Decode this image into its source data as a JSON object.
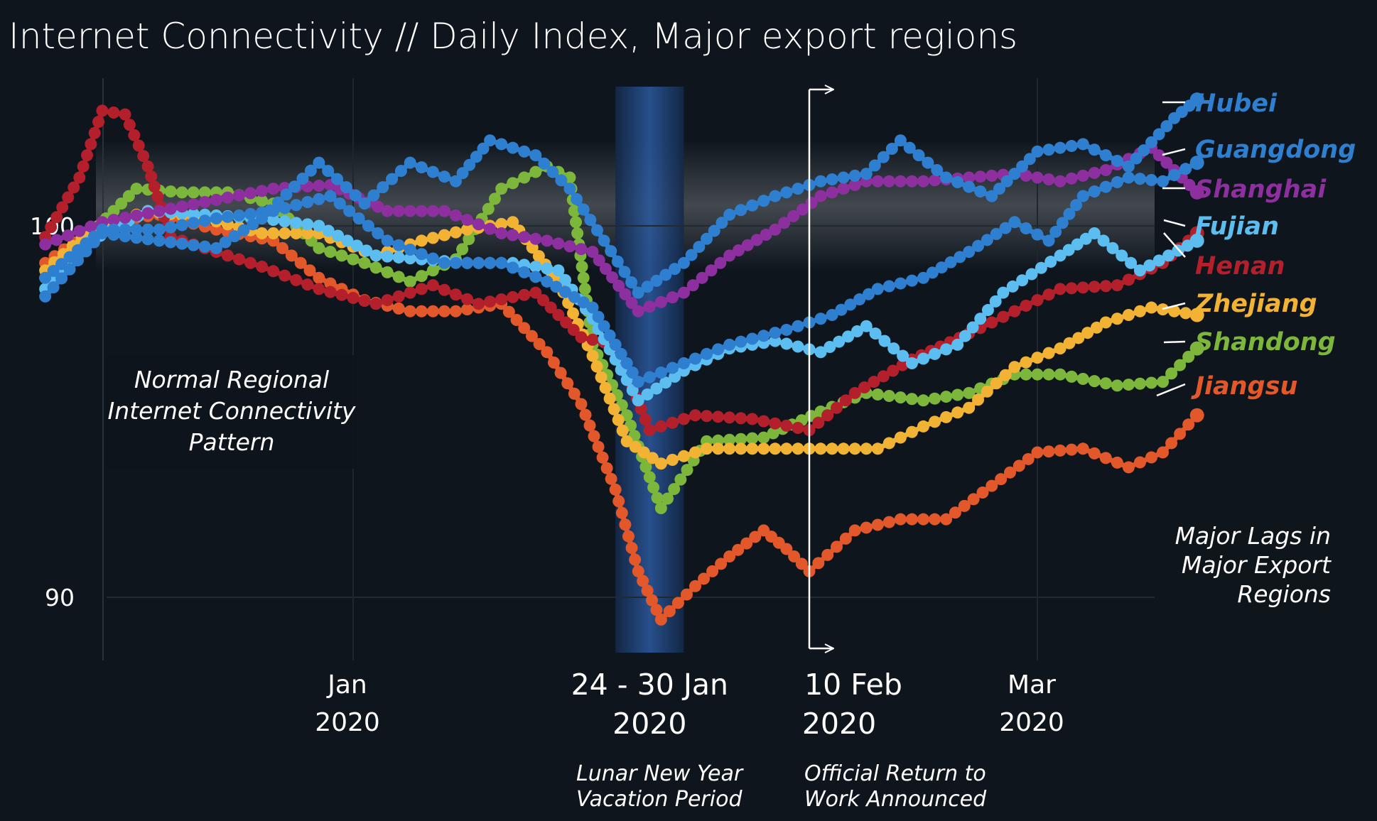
{
  "title": "Internet Connectivity // Daily Index, Major export regions",
  "annotations": {
    "normal_pattern": [
      "Normal Regional",
      "Internet Connectivity",
      "Pattern"
    ],
    "major_lags": [
      "Major Lags in",
      "Major Export",
      "Regions"
    ],
    "lunar_note": [
      "Lunar New Year",
      "Vacation Period"
    ],
    "return_note": [
      "Official Return to",
      "Work Announced"
    ]
  },
  "colors": {
    "background": "#0e151c",
    "Hubei": "#2f7fd1",
    "Guangdong": "#2f7fd1",
    "Shanghai": "#8e2fa0",
    "Fujian": "#5bbdf0",
    "Henan": "#b3202c",
    "Zhejiang": "#f2b233",
    "Shandong": "#7cb63a",
    "Jiangsu": "#e2582a"
  },
  "chart_data": {
    "type": "line",
    "title": "Internet Connectivity // Daily Index, Major export regions",
    "xlabel": "",
    "ylabel": "",
    "x_range": [
      "2019-12-04",
      "2020-03-15"
    ],
    "ylim": [
      88.5,
      103.5
    ],
    "y_ticks": [
      90,
      100
    ],
    "x_ticks": [
      {
        "date": "2020-01-01",
        "line1": "Jan",
        "line2": "2020",
        "big": false
      },
      {
        "date": "2020-01-27",
        "line1": "24 - 30 Jan",
        "line2": "2020",
        "big": true
      },
      {
        "date": "2020-02-10",
        "line1": "10 Feb",
        "line2": "2020",
        "big": true
      },
      {
        "date": "2020-03-01",
        "line1": "Mar",
        "line2": "2020",
        "big": false
      }
    ],
    "shaded_periods": [
      {
        "start": "2020-01-24",
        "end": "2020-01-30",
        "label": "Lunar New Year Vacation Period"
      }
    ],
    "normal_band": [
      98.8,
      102.3
    ],
    "marker_date": "2020-02-10",
    "grid": false,
    "legend_position": "right",
    "series": [
      {
        "name": "Hubei",
        "points": [
          [
            "2019-12-05",
            98.1
          ],
          [
            "2019-12-10",
            99.8
          ],
          [
            "2019-12-15",
            99.6
          ],
          [
            "2019-12-20",
            99.4
          ],
          [
            "2019-12-24",
            100.2
          ],
          [
            "2019-12-29",
            101.7
          ],
          [
            "2020-01-02",
            100.6
          ],
          [
            "2020-01-06",
            101.7
          ],
          [
            "2020-01-10",
            101.2
          ],
          [
            "2020-01-13",
            102.3
          ],
          [
            "2020-01-17",
            101.9
          ],
          [
            "2020-01-20",
            101.0
          ],
          [
            "2020-01-23",
            99.6
          ],
          [
            "2020-01-26",
            98.2
          ],
          [
            "2020-01-30",
            99.0
          ],
          [
            "2020-02-03",
            100.3
          ],
          [
            "2020-02-07",
            100.8
          ],
          [
            "2020-02-11",
            101.2
          ],
          [
            "2020-02-15",
            101.4
          ],
          [
            "2020-02-18",
            102.3
          ],
          [
            "2020-02-22",
            101.3
          ],
          [
            "2020-02-26",
            100.8
          ],
          [
            "2020-03-01",
            102.0
          ],
          [
            "2020-03-05",
            102.2
          ],
          [
            "2020-03-09",
            101.6
          ],
          [
            "2020-03-13",
            102.9
          ],
          [
            "2020-03-15",
            103.4
          ]
        ]
      },
      {
        "name": "Guangdong",
        "points": [
          [
            "2019-12-05",
            98.6
          ],
          [
            "2019-12-10",
            99.9
          ],
          [
            "2019-12-15",
            99.9
          ],
          [
            "2019-12-20",
            100.2
          ],
          [
            "2019-12-25",
            100.4
          ],
          [
            "2019-12-30",
            100.8
          ],
          [
            "2020-01-04",
            99.6
          ],
          [
            "2020-01-09",
            99.0
          ],
          [
            "2020-01-14",
            99.0
          ],
          [
            "2020-01-18",
            98.5
          ],
          [
            "2020-01-22",
            97.8
          ],
          [
            "2020-01-26",
            95.8
          ],
          [
            "2020-01-30",
            96.3
          ],
          [
            "2020-02-03",
            96.8
          ],
          [
            "2020-02-08",
            97.2
          ],
          [
            "2020-02-12",
            97.6
          ],
          [
            "2020-02-16",
            98.3
          ],
          [
            "2020-02-20",
            98.6
          ],
          [
            "2020-02-24",
            99.3
          ],
          [
            "2020-02-28",
            100.1
          ],
          [
            "2020-03-02",
            99.6
          ],
          [
            "2020-03-05",
            100.8
          ],
          [
            "2020-03-09",
            101.3
          ],
          [
            "2020-03-12",
            101.2
          ],
          [
            "2020-03-15",
            101.7
          ]
        ]
      },
      {
        "name": "Shanghai",
        "points": [
          [
            "2019-12-05",
            99.5
          ],
          [
            "2019-12-10",
            100.1
          ],
          [
            "2019-12-15",
            100.4
          ],
          [
            "2019-12-20",
            100.7
          ],
          [
            "2019-12-25",
            101.0
          ],
          [
            "2019-12-30",
            101.1
          ],
          [
            "2020-01-04",
            100.4
          ],
          [
            "2020-01-09",
            100.4
          ],
          [
            "2020-01-14",
            99.8
          ],
          [
            "2020-01-18",
            99.6
          ],
          [
            "2020-01-22",
            99.3
          ],
          [
            "2020-01-26",
            97.7
          ],
          [
            "2020-01-30",
            98.2
          ],
          [
            "2020-02-03",
            99.2
          ],
          [
            "2020-02-07",
            99.9
          ],
          [
            "2020-02-11",
            100.8
          ],
          [
            "2020-02-15",
            101.2
          ],
          [
            "2020-02-20",
            101.2
          ],
          [
            "2020-02-24",
            101.3
          ],
          [
            "2020-02-28",
            101.4
          ],
          [
            "2020-03-03",
            101.2
          ],
          [
            "2020-03-07",
            101.5
          ],
          [
            "2020-03-11",
            102.1
          ],
          [
            "2020-03-15",
            100.9
          ]
        ]
      },
      {
        "name": "Fujian",
        "points": [
          [
            "2019-12-05",
            98.3
          ],
          [
            "2019-12-09",
            99.6
          ],
          [
            "2019-12-14",
            100.4
          ],
          [
            "2019-12-19",
            100.3
          ],
          [
            "2019-12-24",
            100.2
          ],
          [
            "2019-12-29",
            100.0
          ],
          [
            "2020-01-03",
            99.2
          ],
          [
            "2020-01-07",
            99.1
          ],
          [
            "2020-01-11",
            99.0
          ],
          [
            "2020-01-15",
            99.0
          ],
          [
            "2020-01-19",
            98.8
          ],
          [
            "2020-01-22",
            97.5
          ],
          [
            "2020-01-26",
            95.3
          ],
          [
            "2020-01-30",
            96.1
          ],
          [
            "2020-02-03",
            96.7
          ],
          [
            "2020-02-07",
            96.9
          ],
          [
            "2020-02-11",
            96.6
          ],
          [
            "2020-02-15",
            97.3
          ],
          [
            "2020-02-19",
            96.3
          ],
          [
            "2020-02-23",
            96.8
          ],
          [
            "2020-02-27",
            98.2
          ],
          [
            "2020-03-03",
            99.2
          ],
          [
            "2020-03-06",
            99.8
          ],
          [
            "2020-03-10",
            98.8
          ],
          [
            "2020-03-15",
            99.6
          ]
        ]
      },
      {
        "name": "Henan",
        "points": [
          [
            "2019-12-05",
            99.7
          ],
          [
            "2019-12-08",
            101.3
          ],
          [
            "2019-12-10",
            103.1
          ],
          [
            "2019-12-12",
            103.0
          ],
          [
            "2019-12-14",
            101.6
          ],
          [
            "2019-12-16",
            99.7
          ],
          [
            "2019-12-20",
            99.3
          ],
          [
            "2019-12-24",
            98.9
          ],
          [
            "2019-12-29",
            98.3
          ],
          [
            "2020-01-03",
            97.9
          ],
          [
            "2020-01-08",
            98.4
          ],
          [
            "2020-01-12",
            97.9
          ],
          [
            "2020-01-17",
            98.2
          ],
          [
            "2020-01-21",
            97.0
          ],
          [
            "2020-01-24",
            96.8
          ],
          [
            "2020-01-27",
            94.5
          ],
          [
            "2020-01-31",
            94.9
          ],
          [
            "2020-02-05",
            94.8
          ],
          [
            "2020-02-10",
            94.5
          ],
          [
            "2020-02-14",
            95.5
          ],
          [
            "2020-02-19",
            96.4
          ],
          [
            "2020-02-24",
            97.1
          ],
          [
            "2020-02-28",
            97.7
          ],
          [
            "2020-03-03",
            98.3
          ],
          [
            "2020-03-08",
            98.4
          ],
          [
            "2020-03-12",
            99.0
          ],
          [
            "2020-03-15",
            99.8
          ]
        ]
      },
      {
        "name": "Zhejiang",
        "points": [
          [
            "2019-12-05",
            98.8
          ],
          [
            "2019-12-09",
            99.9
          ],
          [
            "2019-12-14",
            100.4
          ],
          [
            "2019-12-19",
            100.2
          ],
          [
            "2019-12-24",
            99.8
          ],
          [
            "2019-12-29",
            99.8
          ],
          [
            "2020-01-03",
            99.2
          ],
          [
            "2020-01-07",
            99.6
          ],
          [
            "2020-01-11",
            99.9
          ],
          [
            "2020-01-15",
            100.1
          ],
          [
            "2020-01-19",
            98.5
          ],
          [
            "2020-01-22",
            96.5
          ],
          [
            "2020-01-25",
            94.2
          ],
          [
            "2020-01-28",
            93.6
          ],
          [
            "2020-02-01",
            94.0
          ],
          [
            "2020-02-06",
            94.0
          ],
          [
            "2020-02-11",
            94.0
          ],
          [
            "2020-02-16",
            94.0
          ],
          [
            "2020-02-20",
            94.6
          ],
          [
            "2020-02-24",
            95.1
          ],
          [
            "2020-02-28",
            96.2
          ],
          [
            "2020-03-03",
            96.7
          ],
          [
            "2020-03-07",
            97.4
          ],
          [
            "2020-03-11",
            97.8
          ],
          [
            "2020-03-15",
            97.6
          ]
        ]
      },
      {
        "name": "Shandong",
        "points": [
          [
            "2019-12-05",
            98.6
          ],
          [
            "2019-12-09",
            99.8
          ],
          [
            "2019-12-13",
            101.0
          ],
          [
            "2019-12-17",
            100.9
          ],
          [
            "2019-12-21",
            100.9
          ],
          [
            "2019-12-25",
            100.6
          ],
          [
            "2019-12-29",
            99.4
          ],
          [
            "2020-01-02",
            99.0
          ],
          [
            "2020-01-06",
            98.5
          ],
          [
            "2020-01-10",
            99.1
          ],
          [
            "2020-01-14",
            101.0
          ],
          [
            "2020-01-18",
            101.6
          ],
          [
            "2020-01-20",
            101.3
          ],
          [
            "2020-01-22",
            96.8
          ],
          [
            "2020-01-25",
            94.9
          ],
          [
            "2020-01-28",
            92.4
          ],
          [
            "2020-02-01",
            94.2
          ],
          [
            "2020-02-06",
            94.3
          ],
          [
            "2020-02-11",
            95.0
          ],
          [
            "2020-02-15",
            95.5
          ],
          [
            "2020-02-20",
            95.3
          ],
          [
            "2020-02-24",
            95.5
          ],
          [
            "2020-02-28",
            96.0
          ],
          [
            "2020-03-03",
            96.0
          ],
          [
            "2020-03-08",
            95.7
          ],
          [
            "2020-03-12",
            95.8
          ],
          [
            "2020-03-15",
            96.7
          ]
        ]
      },
      {
        "name": "Jiangsu",
        "points": [
          [
            "2019-12-05",
            99.0
          ],
          [
            "2019-12-10",
            100.1
          ],
          [
            "2019-12-15",
            100.3
          ],
          [
            "2019-12-20",
            99.9
          ],
          [
            "2019-12-25",
            99.6
          ],
          [
            "2019-12-29",
            98.6
          ],
          [
            "2020-01-02",
            98.0
          ],
          [
            "2020-01-06",
            97.7
          ],
          [
            "2020-01-10",
            97.7
          ],
          [
            "2020-01-14",
            97.9
          ],
          [
            "2020-01-18",
            96.6
          ],
          [
            "2020-01-21",
            95.2
          ],
          [
            "2020-01-24",
            92.9
          ],
          [
            "2020-01-26",
            90.7
          ],
          [
            "2020-01-28",
            89.4
          ],
          [
            "2020-01-31",
            90.3
          ],
          [
            "2020-02-03",
            91.1
          ],
          [
            "2020-02-06",
            91.8
          ],
          [
            "2020-02-08",
            91.3
          ],
          [
            "2020-02-10",
            90.7
          ],
          [
            "2020-02-14",
            91.8
          ],
          [
            "2020-02-18",
            92.1
          ],
          [
            "2020-02-22",
            92.1
          ],
          [
            "2020-02-26",
            93.0
          ],
          [
            "2020-03-01",
            93.9
          ],
          [
            "2020-03-05",
            94.0
          ],
          [
            "2020-03-09",
            93.5
          ],
          [
            "2020-03-12",
            93.9
          ],
          [
            "2020-03-15",
            94.9
          ]
        ]
      }
    ]
  }
}
